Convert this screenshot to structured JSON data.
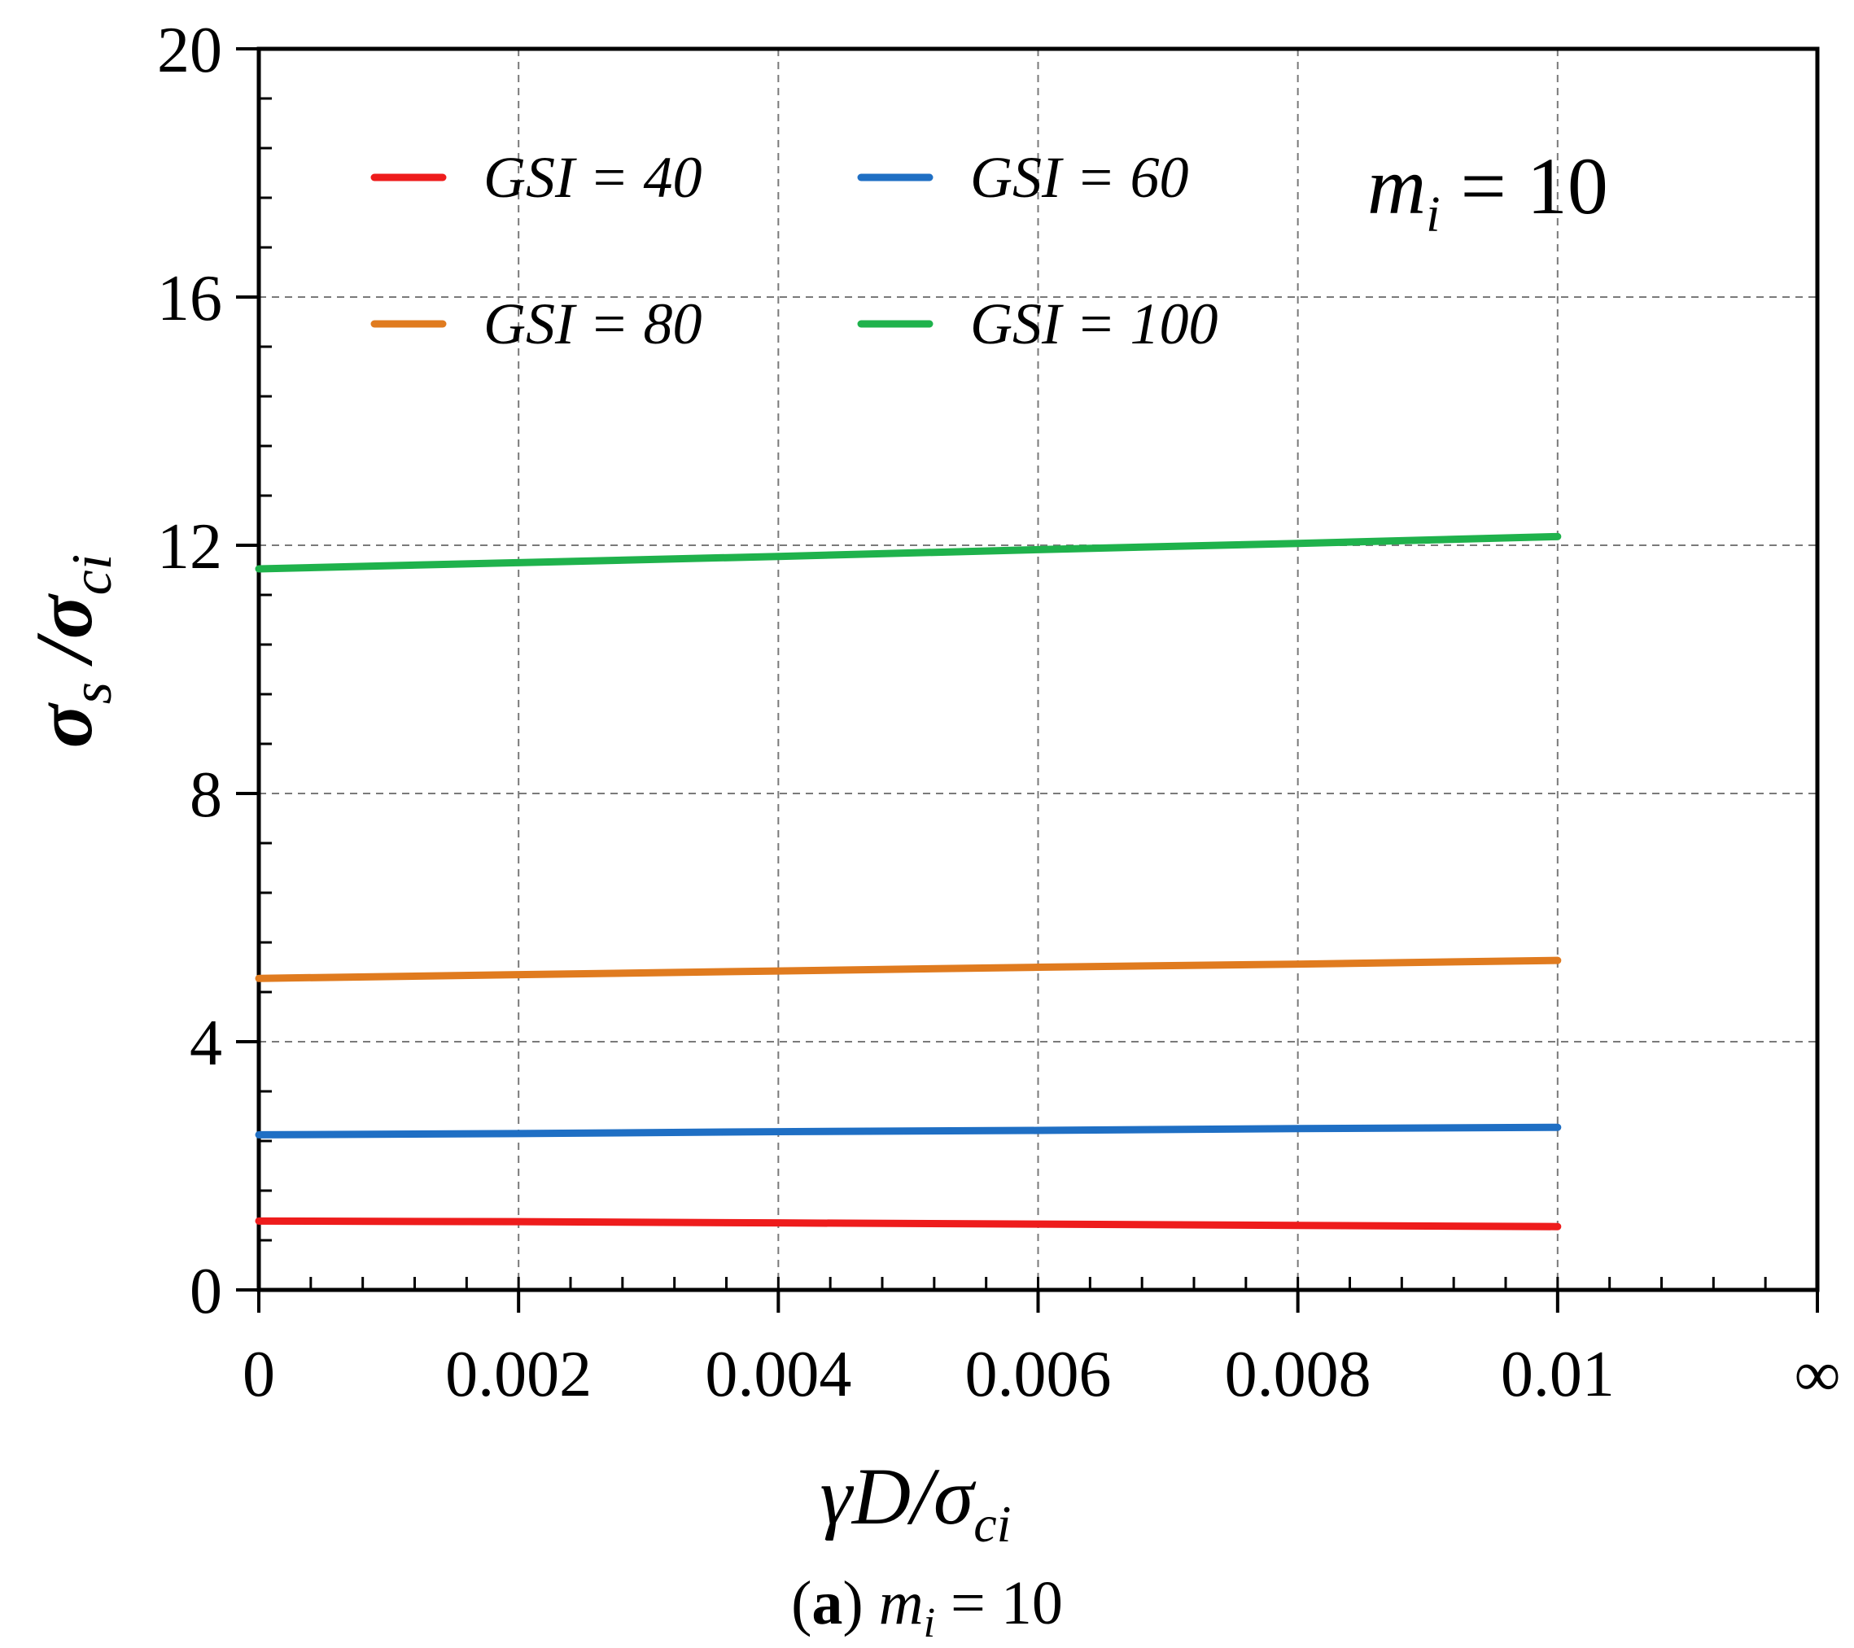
{
  "chart_data": {
    "type": "line",
    "x": [
      0,
      0.002,
      0.004,
      0.006,
      0.008,
      0.01
    ],
    "xtick_labels": [
      "0",
      "0.002",
      "0.004",
      "0.006",
      "0.008",
      "0.01",
      "∞"
    ],
    "xlim": [
      0,
      0.012
    ],
    "ytick_labels": [
      "0",
      "4",
      "8",
      "12",
      "16",
      "20"
    ],
    "ylim": [
      0,
      20
    ],
    "grid": true,
    "xlabel": {
      "base": "γD/σ",
      "sub": "ci"
    },
    "ylabel": {
      "s1": "σ",
      "sub1": "s",
      "mid": " /σ",
      "sub2": "ci"
    },
    "annotation": {
      "base": "m",
      "sub": "i",
      "rest": " = 10"
    },
    "legend_position": "top-left",
    "series": [
      {
        "name": "GSI = 40",
        "color": "#ee1c1c",
        "values": [
          1.11,
          1.1,
          1.08,
          1.06,
          1.04,
          1.02
        ]
      },
      {
        "name": "GSI = 60",
        "color": "#1f6fc4",
        "values": [
          2.5,
          2.52,
          2.55,
          2.57,
          2.6,
          2.62
        ]
      },
      {
        "name": "GSI = 80",
        "color": "#e07b1f",
        "values": [
          5.02,
          5.08,
          5.14,
          5.2,
          5.25,
          5.31
        ]
      },
      {
        "name": "GSI = 100",
        "color": "#1fb24c",
        "values": [
          11.62,
          11.72,
          11.82,
          11.93,
          12.03,
          12.14
        ]
      }
    ]
  },
  "caption": {
    "letter": "a",
    "base": "m",
    "sub": "i",
    "rest": " = 10"
  }
}
